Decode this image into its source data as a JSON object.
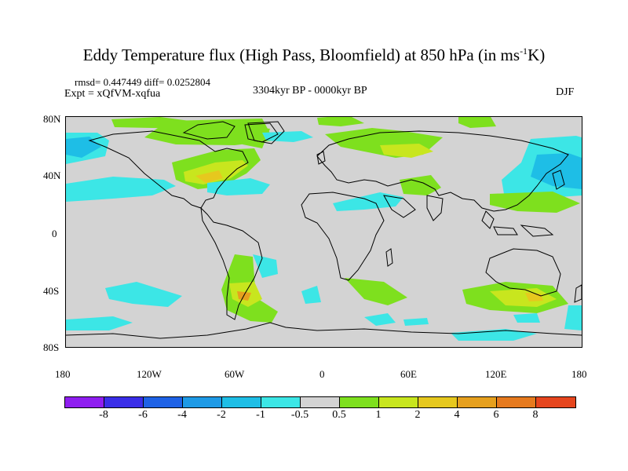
{
  "title": {
    "text": "Eddy Temperature flux (High Pass, Bloomfield) at 850 hPa (in ms",
    "sup": "-1",
    "suffix": "K)"
  },
  "stats": "rmsd= 0.447449 diff= 0.0252804",
  "experiment": "Expt = xQfVM-xqfua",
  "period": "3304kyr BP - 0000kyr BP",
  "season": "DJF",
  "lat_ticks": [
    "80N",
    "40N",
    "0",
    "40S",
    "80S"
  ],
  "lon_ticks": [
    "180",
    "120W",
    "60W",
    "0",
    "60E",
    "120E",
    "180"
  ],
  "colorbar": {
    "colors": [
      "#8f1ef0",
      "#3a2ee8",
      "#1e62e6",
      "#1e9ae6",
      "#1ebee6",
      "#3ce6e6",
      "#d3d3d3",
      "#7ee01e",
      "#c8e61e",
      "#e6c81e",
      "#e6a01e",
      "#e67a1e",
      "#e6461e"
    ],
    "labels": [
      "-8",
      "-6",
      "-4",
      "-2",
      "-1",
      "-0.5",
      "0.5",
      "1",
      "2",
      "4",
      "6",
      "8"
    ]
  }
}
